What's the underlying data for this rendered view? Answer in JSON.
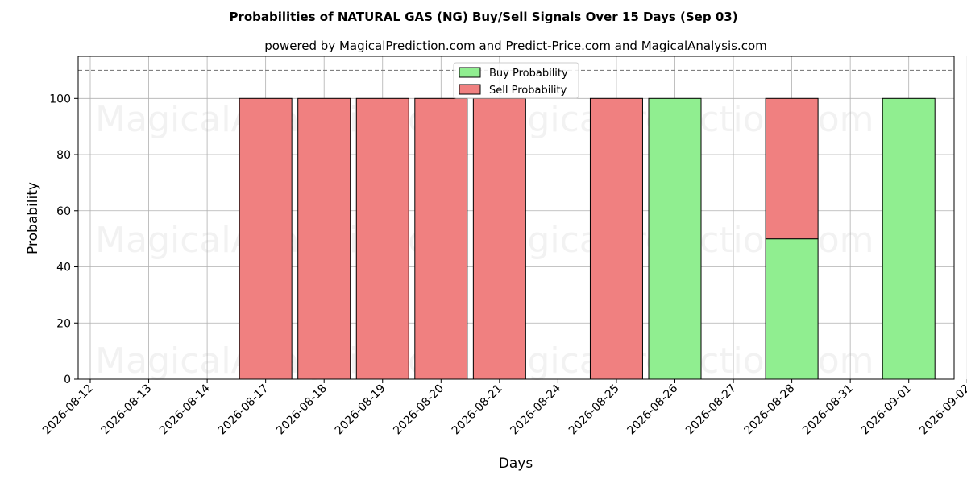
{
  "chart_data": {
    "type": "bar",
    "stacked": true,
    "title": "Probabilities of NATURAL GAS (NG) Buy/Sell Signals Over 15 Days (Sep 03)",
    "subtitle": "powered by MagicalPrediction.com and Predict-Price.com and MagicalAnalysis.com",
    "xlabel": "Days",
    "ylabel": "Probability",
    "ylim": [
      0,
      115
    ],
    "yticks": [
      0,
      20,
      40,
      60,
      80,
      100
    ],
    "reference_line": 110,
    "grid": true,
    "legend_position": "top-center",
    "categories": [
      "2026-08-12",
      "2026-08-13",
      "2026-08-14",
      "2026-08-17",
      "2026-08-18",
      "2026-08-19",
      "2026-08-20",
      "2026-08-21",
      "2026-08-24",
      "2026-08-25",
      "2026-08-26",
      "2026-08-27",
      "2026-08-28",
      "2026-08-31",
      "2026-09-01",
      "2026-09-02"
    ],
    "series": [
      {
        "name": "Buy Probability",
        "color": "#90ee90",
        "values": [
          0,
          0,
          0,
          0,
          0,
          0,
          0,
          0,
          0,
          0,
          100,
          0,
          50,
          0,
          100,
          0
        ]
      },
      {
        "name": "Sell Probability",
        "color": "#f08080",
        "values": [
          0,
          0,
          0,
          100,
          100,
          100,
          100,
          100,
          0,
          100,
          0,
          0,
          50,
          0,
          0,
          0
        ]
      }
    ],
    "watermarks": [
      "MagicalAnalysis.com",
      "MagicalPrediction.com",
      "MagicalAnalysis.com",
      "MagicalPrediction.com",
      "MagicalAnalysis.com",
      "MagicalPrediction.com"
    ]
  }
}
